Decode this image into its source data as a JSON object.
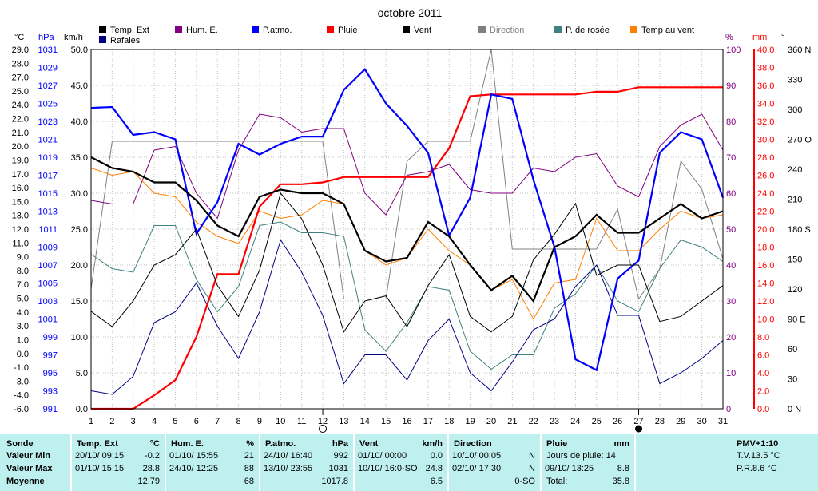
{
  "title": "octobre 2011",
  "units": {
    "temp": "°C",
    "pressure": "hPa",
    "wind": "km/h",
    "humidity": "%",
    "rain": "mm",
    "direction": "°"
  },
  "legend": [
    {
      "label": "Temp. Ext",
      "color": "#000000"
    },
    {
      "label": "Rafales",
      "color": "#000080"
    },
    {
      "label": "Hum. E.",
      "color": "#800080"
    },
    {
      "label": "P.atmo.",
      "color": "#0000ff"
    },
    {
      "label": "Pluie",
      "color": "#ff0000"
    },
    {
      "label": "Vent",
      "color": "#000000"
    },
    {
      "label": "Direction",
      "color": "#808080"
    },
    {
      "label": "P. de rosée",
      "color": "#408080"
    },
    {
      "label": "Temp au vent",
      "color": "#ff8000"
    }
  ],
  "chart_data": {
    "type": "line",
    "title": "octobre 2011",
    "x": [
      1,
      2,
      3,
      4,
      5,
      6,
      7,
      8,
      9,
      10,
      11,
      12,
      13,
      14,
      15,
      16,
      17,
      18,
      19,
      20,
      21,
      22,
      23,
      24,
      25,
      26,
      27,
      28,
      29,
      30,
      31
    ],
    "xlim": [
      1,
      31
    ],
    "moon_markers": [
      {
        "day": 12,
        "phase": "first-quarter"
      },
      {
        "day": 27,
        "phase": "new"
      }
    ],
    "axes": {
      "temp_c": {
        "ticks": [
          "29.0",
          "28.0",
          "27.0",
          "25.0",
          "24.0",
          "22.0",
          "21.0",
          "20.0",
          "19.0",
          "17.0",
          "16.0",
          "15.0",
          "13.0",
          "12.0",
          "11.0",
          "9.0",
          "8.0",
          "7.0",
          "5.0",
          "4.0",
          "3.0",
          "1.0",
          "0.0",
          "-1.0",
          "-3.0",
          "-4.0",
          "-6.0"
        ],
        "range": [
          -6,
          29
        ]
      },
      "pressure_hpa": {
        "ticks": [
          "1031",
          "1029",
          "1027",
          "1025",
          "1023",
          "1021",
          "1019",
          "1017",
          "1015",
          "1013",
          "1011",
          "1009",
          "1007",
          "1005",
          "1003",
          "1001",
          "999",
          "997",
          "995",
          "993",
          "991"
        ],
        "range": [
          991,
          1031
        ]
      },
      "wind_kmh": {
        "ticks": [
          "50.0",
          "45.0",
          "40.0",
          "35.0",
          "30.0",
          "25.0",
          "20.0",
          "15.0",
          "10.0",
          "5.0",
          "0.0"
        ],
        "range": [
          0,
          50
        ]
      },
      "humidity_pct": {
        "ticks": [
          "100",
          "90",
          "80",
          "70",
          "60",
          "50",
          "40",
          "30",
          "20",
          "10",
          "0"
        ],
        "range": [
          0,
          100
        ]
      },
      "rain_mm": {
        "ticks": [
          "40.0",
          "38.0",
          "36.0",
          "34.0",
          "32.0",
          "30.0",
          "28.0",
          "26.0",
          "24.0",
          "22.0",
          "20.0",
          "18.0",
          "16.0",
          "14.0",
          "12.0",
          "10.0",
          "8.0",
          "6.0",
          "4.0",
          "2.0",
          "0.0"
        ],
        "range": [
          0,
          40
        ]
      },
      "direction": {
        "ticks": [
          "360 N",
          "330",
          "300",
          "270 O",
          "240",
          "210",
          "180 S",
          "150",
          "120",
          "90 E",
          "60",
          "30",
          "0 N"
        ],
        "range": [
          0,
          360
        ]
      }
    },
    "series": [
      {
        "name": "P. de rosée",
        "axis": "wind_kmh",
        "color": "#408080",
        "values": [
          21.5,
          19.5,
          19,
          25.5,
          25.5,
          18,
          13.5,
          17,
          25.5,
          26,
          24.5,
          24.5,
          24,
          11,
          8,
          12,
          17,
          16.5,
          8,
          5.5,
          7.5,
          7.5,
          14,
          16,
          20,
          15,
          13.5,
          19.5,
          23.5,
          22.5,
          20.5
        ]
      },
      {
        "name": "Direction",
        "axis": "direction",
        "color": "#808080",
        "values": [
          120,
          268,
          268,
          268,
          268,
          268,
          268,
          268,
          268,
          268,
          268,
          268,
          110,
          110,
          110,
          248,
          268,
          268,
          268,
          360,
          160,
          160,
          160,
          160,
          160,
          200,
          110,
          140,
          248,
          220,
          150
        ]
      },
      {
        "name": "Rafales",
        "axis": "wind_kmh",
        "color": "#000080",
        "values": [
          2.5,
          2,
          4.5,
          12,
          13.5,
          17.5,
          11.5,
          7,
          13.5,
          23.5,
          19,
          13,
          3.5,
          7.5,
          7.5,
          4,
          9.5,
          12.5,
          5,
          2.5,
          6.5,
          11,
          12.5,
          17,
          20,
          13,
          13,
          3.5,
          5,
          7,
          9.5
        ]
      },
      {
        "name": "Hum. E.",
        "axis": "humidity_pct",
        "color": "#800080",
        "values": [
          58,
          57,
          57,
          72,
          73,
          60,
          53,
          72,
          82,
          81,
          77,
          78,
          78,
          60,
          54,
          65,
          66,
          68,
          61,
          60,
          60,
          67,
          66,
          70,
          71,
          62,
          59,
          73,
          79,
          82,
          72
        ]
      },
      {
        "name": "Temp au vent",
        "axis": "wind_kmh",
        "color": "#ff8000",
        "values": [
          33.5,
          32.5,
          33,
          30,
          29.5,
          26,
          24,
          23,
          27.5,
          26.5,
          27,
          29,
          28.5,
          22,
          20,
          21,
          25,
          22,
          20,
          16.5,
          18,
          12.5,
          17.5,
          18,
          26.5,
          22,
          22,
          25,
          27.5,
          26.5,
          27
        ]
      },
      {
        "name": "Pluie",
        "axis": "rain_mm",
        "color": "#ff0000",
        "values": [
          0,
          0,
          0,
          1.5,
          3.2,
          8,
          15,
          15,
          22.5,
          25,
          25,
          25.2,
          25.8,
          25.8,
          25.8,
          25.8,
          25.8,
          29,
          34.8,
          35,
          35,
          35,
          35,
          35,
          35.3,
          35.3,
          35.8,
          35.8,
          35.8,
          35.8,
          35.8
        ]
      },
      {
        "name": "P.atmo.",
        "axis": "pressure_hpa",
        "color": "#0000ff",
        "values": [
          1024.5,
          1024.6,
          1021.5,
          1021.8,
          1021,
          1010.5,
          1014,
          1020.5,
          1019.3,
          1020.5,
          1021.3,
          1021.3,
          1026.5,
          1028.8,
          1025,
          1022.5,
          1019.5,
          1010.3,
          1014.5,
          1026,
          1025.5,
          1016.5,
          1009,
          996.5,
          995.3,
          1005.5,
          1007.5,
          1019.5,
          1021.8,
          1021,
          1014.5
        ]
      },
      {
        "name": "Temp. Ext",
        "axis": "temp_c",
        "color": "#000000",
        "values": [
          3.5,
          2,
          4.5,
          8,
          9,
          11.5,
          6,
          3,
          7.5,
          15,
          12.5,
          8,
          1.5,
          4.5,
          5,
          2,
          6,
          9,
          3,
          1.5,
          3,
          8.5,
          11,
          14,
          7,
          8,
          8,
          2.5,
          3,
          4.5,
          6
        ]
      },
      {
        "name": "Vent",
        "axis": "wind_kmh",
        "color": "#000000",
        "values": [
          35,
          33.5,
          33,
          31.5,
          31.5,
          29,
          25.5,
          24,
          29.5,
          30.5,
          30,
          30,
          28.5,
          22,
          20.5,
          21,
          26,
          24,
          20,
          16.5,
          18.5,
          15,
          22.5,
          24,
          27,
          24.5,
          24.5,
          26.5,
          28.5,
          26.5,
          27.5
        ]
      }
    ]
  },
  "stats": {
    "col1": {
      "r0": "Sonde",
      "r1": "Valeur Min",
      "r2": "Valeur Max",
      "r3": "Moyenne"
    },
    "col2": {
      "head": "Temp. Ext",
      "unit": "°C",
      "min_date": "20/10/  09:15",
      "min_val": "-0.2",
      "max_date": "01/10/  15:15",
      "max_val": "28.8",
      "avg": "12.79"
    },
    "col3": {
      "head": "Hum. E.",
      "unit": "%",
      "min_date": "01/10/  15:55",
      "min_val": "21",
      "max_date": "24/10/  12:25",
      "max_val": "88",
      "avg": "68"
    },
    "col4": {
      "head": "P.atmo.",
      "unit": "hPa",
      "min_date": "24/10/  16:40",
      "min_val": "992",
      "max_date": "13/10/  23:55",
      "max_val": "1031",
      "avg": "1017.8"
    },
    "col5": {
      "head": "Vent",
      "unit": "km/h",
      "min_date": "01/10/  00:00",
      "min_val": "0.0",
      "max_date": "10/10/  16:0-SO",
      "max_val": "24.8",
      "avg": "6.5"
    },
    "col6": {
      "head": "Direction",
      "min_date": "10/10/  00:05",
      "min_val": "N",
      "max_date": "02/10/  17:30",
      "max_val": "N",
      "avg": "0-SO"
    },
    "col7": {
      "head": "Pluie",
      "unit": "mm",
      "r1": "Jours de pluie: 14",
      "r2_date": "09/10/  13:25",
      "r2_val": "8.8",
      "r3_label": "Total:",
      "r3_val": "35.8"
    },
    "col8": {
      "r0": "PMV+1:10",
      "r1": "T.V.13.5 °C",
      "r2": "P.R.8.6 °C"
    }
  }
}
